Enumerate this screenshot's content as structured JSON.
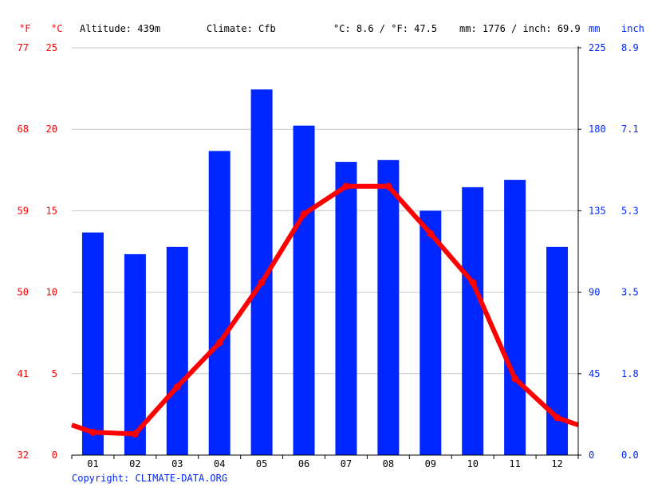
{
  "header": {
    "f_unit": "°F",
    "c_unit": "°C",
    "altitude": "Altitude: 439m",
    "climate": "Climate: Cfb",
    "temp_avg": "°C: 8.6 / °F: 47.5",
    "precip_total": "mm: 1776 / inch: 69.9",
    "mm_unit": "mm",
    "inch_unit": "inch"
  },
  "footer": {
    "copyright": "Copyright: CLIMATE-DATA.ORG"
  },
  "colors": {
    "precip": "#0026ff",
    "temp": "#ff0000",
    "grid": "#c8c8c8",
    "left_axis_text": "#ff0000",
    "right_axis_text": "#0026ff"
  },
  "chart_data": {
    "type": "bar+line",
    "categories": [
      "01",
      "02",
      "03",
      "04",
      "05",
      "06",
      "07",
      "08",
      "09",
      "10",
      "11",
      "12"
    ],
    "series": [
      {
        "name": "mm",
        "type": "bar",
        "axis": "right",
        "values": [
          123,
          111,
          115,
          168,
          202,
          182,
          162,
          163,
          135,
          148,
          152,
          115
        ]
      },
      {
        "name": "°C",
        "type": "line",
        "axis": "left",
        "values": [
          1.4,
          1.3,
          4.2,
          6.9,
          10.6,
          14.8,
          16.5,
          16.5,
          13.6,
          10.6,
          4.7,
          2.3
        ]
      }
    ],
    "left_axis_c": {
      "ylim": [
        0,
        25
      ],
      "ticks": [
        "0",
        "5",
        "10",
        "15",
        "20",
        "25"
      ]
    },
    "left_axis_f": {
      "ticks": [
        "32",
        "41",
        "50",
        "59",
        "68",
        "77"
      ]
    },
    "right_axis_mm": {
      "ylim": [
        0,
        225
      ],
      "ticks": [
        "0",
        "45",
        "90",
        "135",
        "180",
        "225"
      ]
    },
    "right_axis_inch": {
      "ticks": [
        "0.0",
        "1.8",
        "3.5",
        "5.3",
        "7.1",
        "8.9"
      ]
    },
    "grid": true
  }
}
